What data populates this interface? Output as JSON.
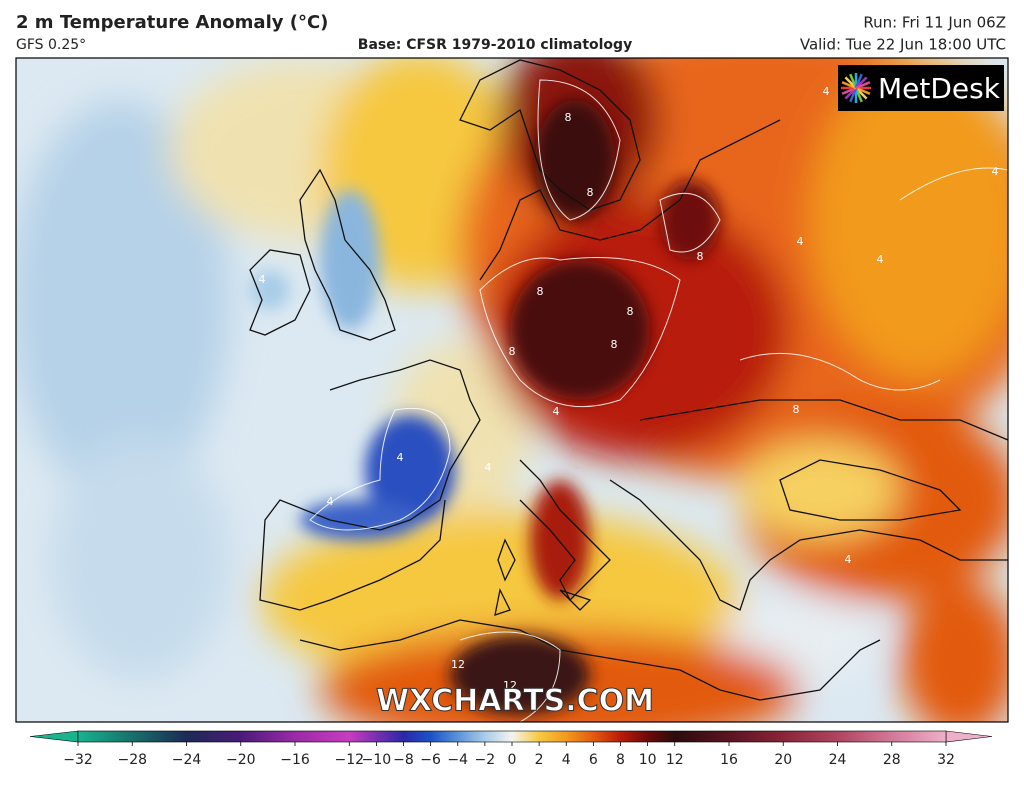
{
  "header": {
    "title": "2 m Temperature Anomaly (°C)",
    "model": "GFS 0.25°",
    "base": "Base: CFSR 1979-2010 climatology",
    "run": "Run: Fri 11 Jun 06Z",
    "valid": "Valid: Tue 22 Jun 18:00 UTC"
  },
  "logo": "MetDesk",
  "watermark": "WXCHARTS.COM",
  "map": {
    "contour_labels": [
      4,
      8,
      8,
      8,
      4,
      8,
      8,
      4,
      4,
      4,
      8,
      4,
      4,
      8,
      12,
      12,
      4,
      8,
      4,
      4
    ]
  },
  "colorbar": {
    "lim": [
      -32,
      32
    ],
    "ticks": [
      {
        "value": -32,
        "label": "−32"
      },
      {
        "value": -28,
        "label": "−28"
      },
      {
        "value": -24,
        "label": "−24"
      },
      {
        "value": -20,
        "label": "−20"
      },
      {
        "value": -16,
        "label": "−16"
      },
      {
        "value": -12,
        "label": "−12"
      },
      {
        "value": -10,
        "label": "−10"
      },
      {
        "value": -8,
        "label": "−8"
      },
      {
        "value": -6,
        "label": "−6"
      },
      {
        "value": -4,
        "label": "−4"
      },
      {
        "value": -2,
        "label": "−2"
      },
      0,
      2,
      4,
      6,
      8,
      10,
      12,
      16,
      20,
      24,
      28,
      32
    ],
    "color_stops": [
      {
        "value": -32,
        "color": "#19b38f"
      },
      {
        "value": -28,
        "color": "#16706a"
      },
      {
        "value": -24,
        "color": "#1c2a55"
      },
      {
        "value": -20,
        "color": "#4a1a78"
      },
      {
        "value": -16,
        "color": "#9a2aa8"
      },
      {
        "value": -12,
        "color": "#c83cc0"
      },
      {
        "value": -10,
        "color": "#7a30b0"
      },
      {
        "value": -8,
        "color": "#2a28a8"
      },
      {
        "value": -6,
        "color": "#1c52c8"
      },
      {
        "value": -4,
        "color": "#5a92d8"
      },
      {
        "value": -2,
        "color": "#a8cce8"
      },
      {
        "value": 0,
        "color": "#f4f4f0"
      },
      {
        "value": 2,
        "color": "#f6c840"
      },
      {
        "value": 4,
        "color": "#f29a1c"
      },
      {
        "value": 6,
        "color": "#e25a10"
      },
      {
        "value": 8,
        "color": "#b81c08"
      },
      {
        "value": 10,
        "color": "#6e0a0a"
      },
      {
        "value": 12,
        "color": "#2a0c0c"
      },
      {
        "value": 16,
        "color": "#5a1420"
      },
      {
        "value": 20,
        "color": "#8a2438"
      },
      {
        "value": 24,
        "color": "#b04460"
      },
      {
        "value": 28,
        "color": "#d27898"
      },
      {
        "value": 32,
        "color": "#eeb0c8"
      }
    ]
  }
}
